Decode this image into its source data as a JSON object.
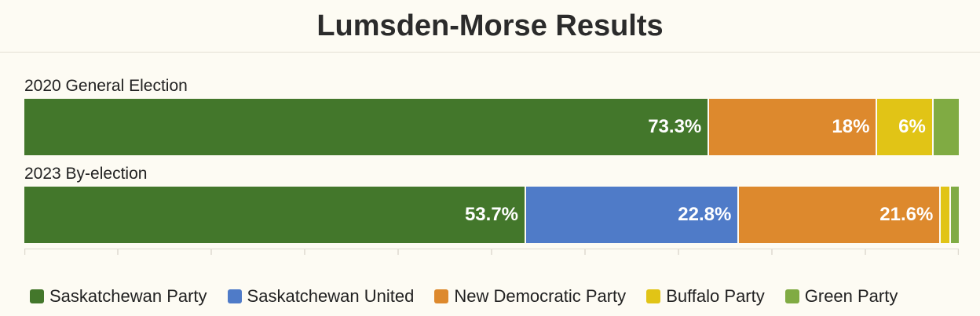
{
  "chart_data": {
    "type": "bar",
    "orientation": "horizontal-stacked",
    "title": "Lumsden-Morse Results",
    "categories": [
      "2020 General Election",
      "2023 By-election"
    ],
    "xlim": [
      0,
      100
    ],
    "legend_position": "bottom",
    "series": [
      {
        "name": "Saskatchewan Party",
        "color": "#43772b",
        "values": [
          73.3,
          53.7
        ],
        "labels": [
          "73.3%",
          "53.7%"
        ]
      },
      {
        "name": "Saskatchewan United",
        "color": "#4f7bc8",
        "values": [
          0,
          22.8
        ],
        "labels": [
          "",
          "22.8%"
        ]
      },
      {
        "name": "New Democratic Party",
        "color": "#dd892d",
        "values": [
          18,
          21.6
        ],
        "labels": [
          "18%",
          "21.6%"
        ]
      },
      {
        "name": "Buffalo Party",
        "color": "#e1c416",
        "values": [
          6,
          1.1
        ],
        "labels": [
          "6%",
          ""
        ]
      },
      {
        "name": "Green Party",
        "color": "#80ab43",
        "values": [
          2.7,
          0.8
        ],
        "labels": [
          "",
          ""
        ]
      }
    ]
  }
}
